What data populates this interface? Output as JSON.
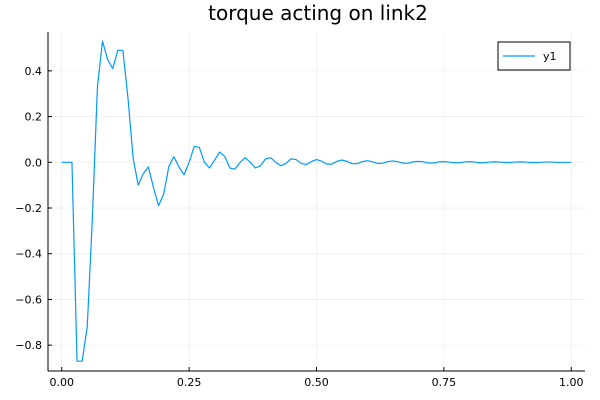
{
  "chart_data": {
    "type": "line",
    "title": "torque acting on link2",
    "xlabel": "",
    "ylabel": "",
    "xlim": [
      -0.027,
      1.027
    ],
    "ylim": [
      -0.913,
      0.57
    ],
    "xticks": [
      0.0,
      0.25,
      0.5,
      0.75,
      1.0
    ],
    "xtick_labels": [
      "0.00",
      "0.25",
      "0.50",
      "0.75",
      "1.00"
    ],
    "yticks": [
      -0.8,
      -0.6,
      -0.4,
      -0.2,
      0.0,
      0.2,
      0.4
    ],
    "ytick_labels": [
      "−0.8",
      "−0.6",
      "−0.4",
      "−0.2",
      "0.0",
      "0.2",
      "0.4"
    ],
    "grid": true,
    "legend_position": "top-right",
    "series": [
      {
        "name": "y1",
        "color": "#009af9",
        "x": [
          0.0,
          0.01,
          0.02,
          0.03,
          0.04,
          0.05,
          0.06,
          0.07,
          0.08,
          0.09,
          0.1,
          0.11,
          0.12,
          0.13,
          0.14,
          0.15,
          0.16,
          0.17,
          0.18,
          0.19,
          0.2,
          0.21,
          0.22,
          0.23,
          0.24,
          0.25,
          0.26,
          0.27,
          0.28,
          0.29,
          0.3,
          0.31,
          0.32,
          0.33,
          0.34,
          0.35,
          0.36,
          0.37,
          0.38,
          0.39,
          0.4,
          0.41,
          0.42,
          0.43,
          0.44,
          0.45,
          0.46,
          0.47,
          0.48,
          0.49,
          0.5,
          0.51,
          0.52,
          0.53,
          0.54,
          0.55,
          0.56,
          0.57,
          0.58,
          0.59,
          0.6,
          0.61,
          0.62,
          0.63,
          0.64,
          0.65,
          0.66,
          0.67,
          0.68,
          0.69,
          0.7,
          0.71,
          0.72,
          0.73,
          0.74,
          0.75,
          0.76,
          0.77,
          0.78,
          0.79,
          0.8,
          0.81,
          0.82,
          0.83,
          0.84,
          0.85,
          0.86,
          0.87,
          0.88,
          0.89,
          0.9,
          0.91,
          0.92,
          0.93,
          0.94,
          0.95,
          0.96,
          0.97,
          0.98,
          0.99,
          1.0
        ],
        "y": [
          0.0,
          0.0,
          0.0,
          -0.87,
          -0.87,
          -0.72,
          -0.25,
          0.33,
          0.53,
          0.45,
          0.41,
          0.49,
          0.49,
          0.28,
          0.02,
          -0.1,
          -0.05,
          -0.02,
          -0.11,
          -0.19,
          -0.14,
          -0.02,
          0.025,
          -0.02,
          -0.055,
          0.0,
          0.07,
          0.065,
          0.0,
          -0.025,
          0.01,
          0.045,
          0.025,
          -0.025,
          -0.03,
          0.0,
          0.02,
          0.0,
          -0.025,
          -0.015,
          0.015,
          0.02,
          0.0,
          -0.015,
          -0.005,
          0.015,
          0.012,
          -0.005,
          -0.01,
          0.003,
          0.012,
          0.005,
          -0.008,
          -0.008,
          0.004,
          0.01,
          0.004,
          -0.006,
          -0.006,
          0.003,
          0.007,
          0.002,
          -0.005,
          -0.004,
          0.003,
          0.006,
          0.002,
          -0.004,
          -0.004,
          0.002,
          0.004,
          0.002,
          -0.003,
          -0.003,
          0.002,
          0.003,
          0.001,
          -0.002,
          -0.002,
          0.001,
          0.003,
          0.001,
          -0.002,
          -0.002,
          0.001,
          0.002,
          0.001,
          -0.001,
          -0.001,
          0.001,
          0.002,
          0.001,
          -0.001,
          -0.001,
          0.0,
          0.001,
          0.001,
          0.0,
          -0.001,
          0.0,
          0.0
        ]
      }
    ]
  }
}
